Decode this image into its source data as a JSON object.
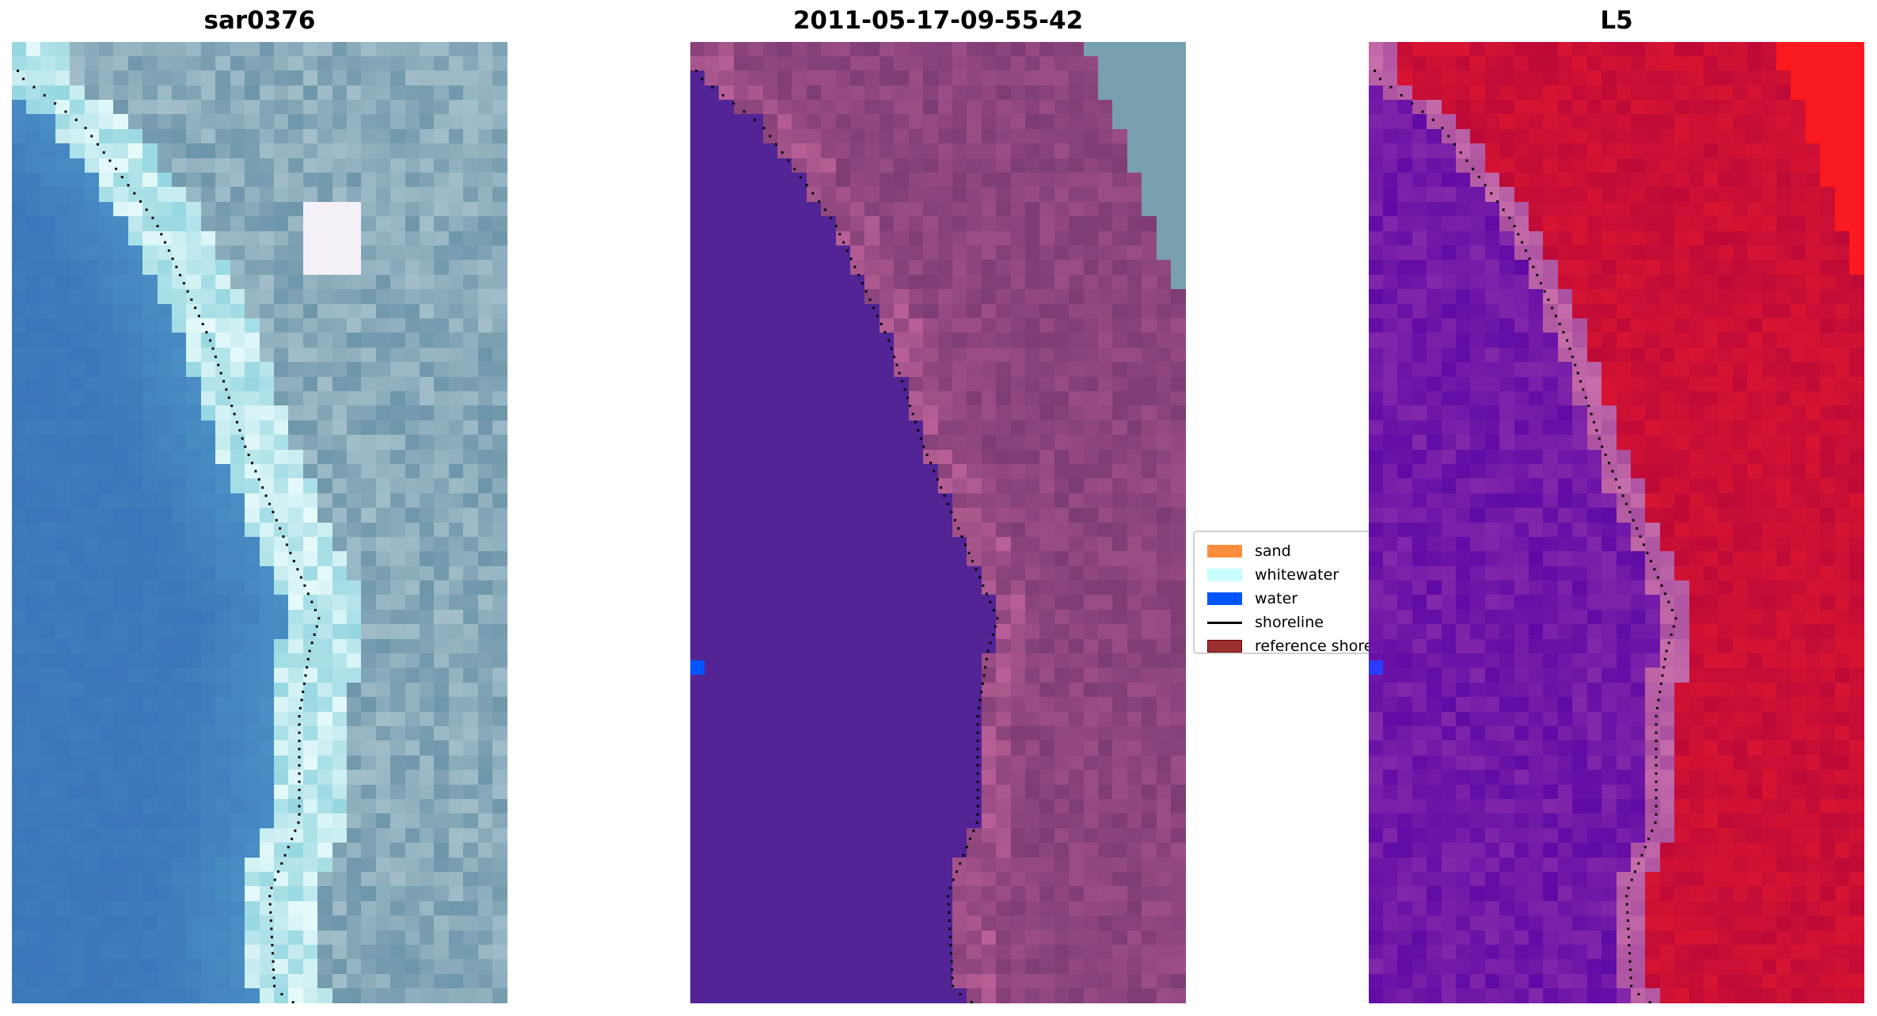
{
  "panels": [
    {
      "title": "sar0376"
    },
    {
      "title": "2011-05-17-09-55-42"
    },
    {
      "title": "L5"
    }
  ],
  "legend": {
    "items": [
      {
        "label": "sand",
        "color": "#ff8c3c",
        "kind": "patch"
      },
      {
        "label": "whitewater",
        "color": "#c8fcfc",
        "kind": "patch"
      },
      {
        "label": "water",
        "color": "#0055ff",
        "kind": "patch"
      },
      {
        "label": "shoreline",
        "color": "#000000",
        "kind": "line"
      },
      {
        "label": "reference shoreline",
        "color": "#9b3030",
        "kind": "patch"
      }
    ]
  }
}
